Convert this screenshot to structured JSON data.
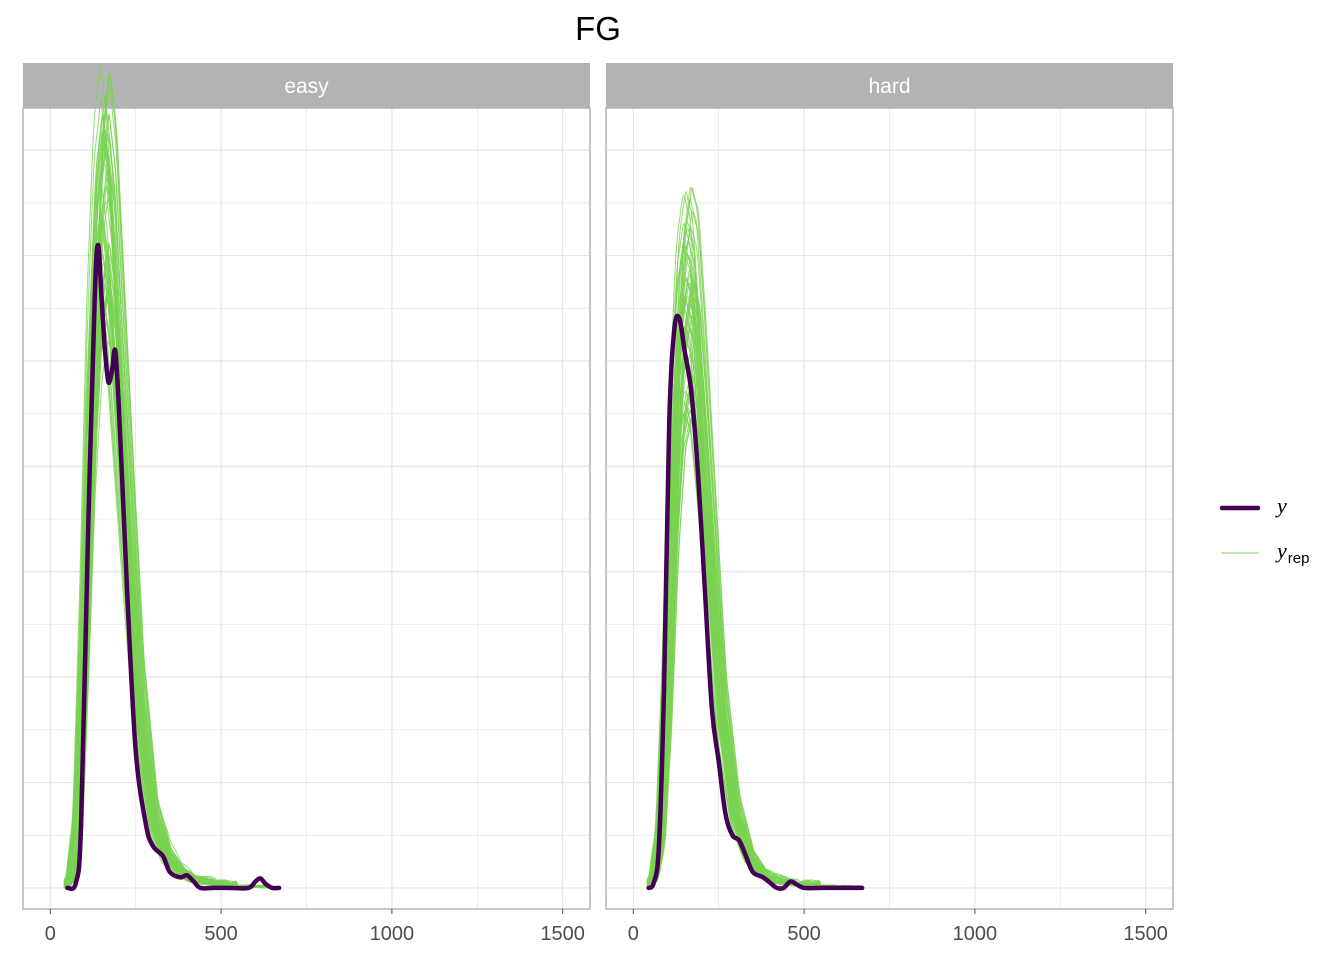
{
  "chart_data": {
    "type": "line",
    "title": "FG",
    "xlim": [
      -80,
      1580
    ],
    "x_ticks": [
      0,
      500,
      1000,
      1500
    ],
    "x_tick_labels": [
      "0",
      "500",
      "1000",
      "1500"
    ],
    "grid": true,
    "legend_position": "right",
    "panels": [
      {
        "label": "easy",
        "y_peak": 0.0061,
        "ylim": [
          -0.0002,
          0.0074
        ],
        "series": [
          {
            "name": "y",
            "role": "observed",
            "x": [
              50,
              75,
              90,
              110,
              130,
              140,
              150,
              160,
              170,
              180,
              190,
              200,
              210,
              225,
              250,
              280,
              300,
              330,
              350,
              380,
              400,
              420,
              440,
              480,
              520,
              580,
              600,
              615,
              630,
              650,
              670
            ],
            "y": [
              0.0,
              5e-05,
              0.0006,
              0.0033,
              0.0056,
              0.0061,
              0.0056,
              0.0051,
              0.0048,
              0.0049,
              0.0051,
              0.0046,
              0.0039,
              0.0028,
              0.0013,
              0.0006,
              0.0004,
              0.0003,
              0.00015,
              0.0001,
              0.00012,
              6e-05,
              0.0,
              0.0,
              0.0,
              0.0,
              6e-05,
              9e-05,
              4e-05,
              0.0,
              0.0
            ]
          },
          {
            "name": "y_rep",
            "role": "replicated",
            "x": [
              40,
              60,
              80,
              100,
              120,
              140,
              160,
              180,
              200,
              230,
              260,
              300,
              340,
              380,
              420,
              460,
              500,
              540,
              600,
              650,
              670
            ],
            "y": [
              0.0,
              0.0001,
              0.0006,
              0.0024,
              0.0046,
              0.006,
              0.0065,
              0.006,
              0.0049,
              0.0033,
              0.0018,
              0.0007,
              0.0003,
              0.00015,
              7e-05,
              4e-05,
              2e-05,
              1e-05,
              1e-05,
              0.0,
              0.0
            ]
          }
        ]
      },
      {
        "label": "hard",
        "y_peak": 0.0054,
        "ylim": [
          -0.0002,
          0.0074
        ],
        "series": [
          {
            "name": "y",
            "role": "observed",
            "x": [
              45,
              60,
              75,
              90,
              105,
              120,
              135,
              150,
              170,
              190,
              210,
              230,
              250,
              270,
              290,
              310,
              330,
              350,
              380,
              400,
              420,
              440,
              460,
              480,
              500,
              550,
              600,
              670
            ],
            "y": [
              0.0,
              5e-05,
              0.0004,
              0.0019,
              0.0044,
              0.0053,
              0.0054,
              0.0051,
              0.0047,
              0.0039,
              0.0028,
              0.0017,
              0.0012,
              0.0007,
              0.0005,
              0.00045,
              0.0003,
              0.00015,
              0.0001,
              5e-05,
              0.0,
              0.0,
              6e-05,
              3e-05,
              0.0,
              0.0,
              0.0,
              0.0
            ]
          },
          {
            "name": "y_rep",
            "role": "replicated",
            "x": [
              40,
              60,
              80,
              100,
              120,
              140,
              160,
              180,
              200,
              230,
              260,
              300,
              340,
              380,
              420,
              460,
              500,
              540,
              600,
              670
            ],
            "y": [
              0.0,
              0.0001,
              0.0005,
              0.0019,
              0.0039,
              0.0051,
              0.0055,
              0.0053,
              0.0045,
              0.0031,
              0.0017,
              0.0007,
              0.0003,
              0.00013,
              6e-05,
              3e-05,
              2e-05,
              1e-05,
              1e-05,
              0.0
            ]
          }
        ]
      }
    ],
    "legend": [
      {
        "label": "y",
        "subscript": ""
      },
      {
        "label": "y",
        "subscript": "rep"
      }
    ],
    "colors": {
      "observed": "#440154",
      "replicated": "#7ad151",
      "strip": "#b3b3b3",
      "grid": "#e5e5e5",
      "border": "#b3b3b3"
    }
  }
}
